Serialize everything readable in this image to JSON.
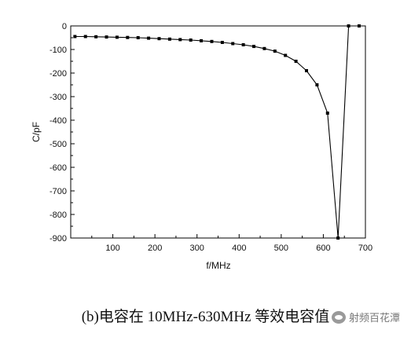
{
  "chart_data": {
    "type": "line",
    "title": "",
    "xlabel": "f/MHz",
    "ylabel": "C/pF",
    "xlim": [
      0,
      700
    ],
    "ylim": [
      -900,
      0
    ],
    "x_ticks": [
      100,
      200,
      300,
      400,
      500,
      600,
      700
    ],
    "y_ticks": [
      0,
      -100,
      -200,
      -300,
      -400,
      -500,
      -600,
      -700,
      -800,
      -900
    ],
    "grid": false,
    "series": [
      {
        "marker": "square",
        "color": "#000000",
        "x": [
          10,
          35,
          60,
          85,
          110,
          135,
          160,
          185,
          210,
          235,
          260,
          285,
          310,
          335,
          360,
          385,
          410,
          435,
          460,
          485,
          510,
          535,
          560,
          585,
          610,
          635,
          660,
          685
        ],
        "y": [
          -45,
          -45,
          -46,
          -47,
          -48,
          -49,
          -50,
          -52,
          -54,
          -56,
          -58,
          -60,
          -63,
          -66,
          -70,
          -75,
          -80,
          -87,
          -96,
          -107,
          -125,
          -150,
          -190,
          -250,
          -370,
          -900,
          0,
          0
        ]
      }
    ]
  },
  "caption": "(b)电容在 10MHz-630MHz 等效电容值",
  "watermark": "射频百花潭"
}
